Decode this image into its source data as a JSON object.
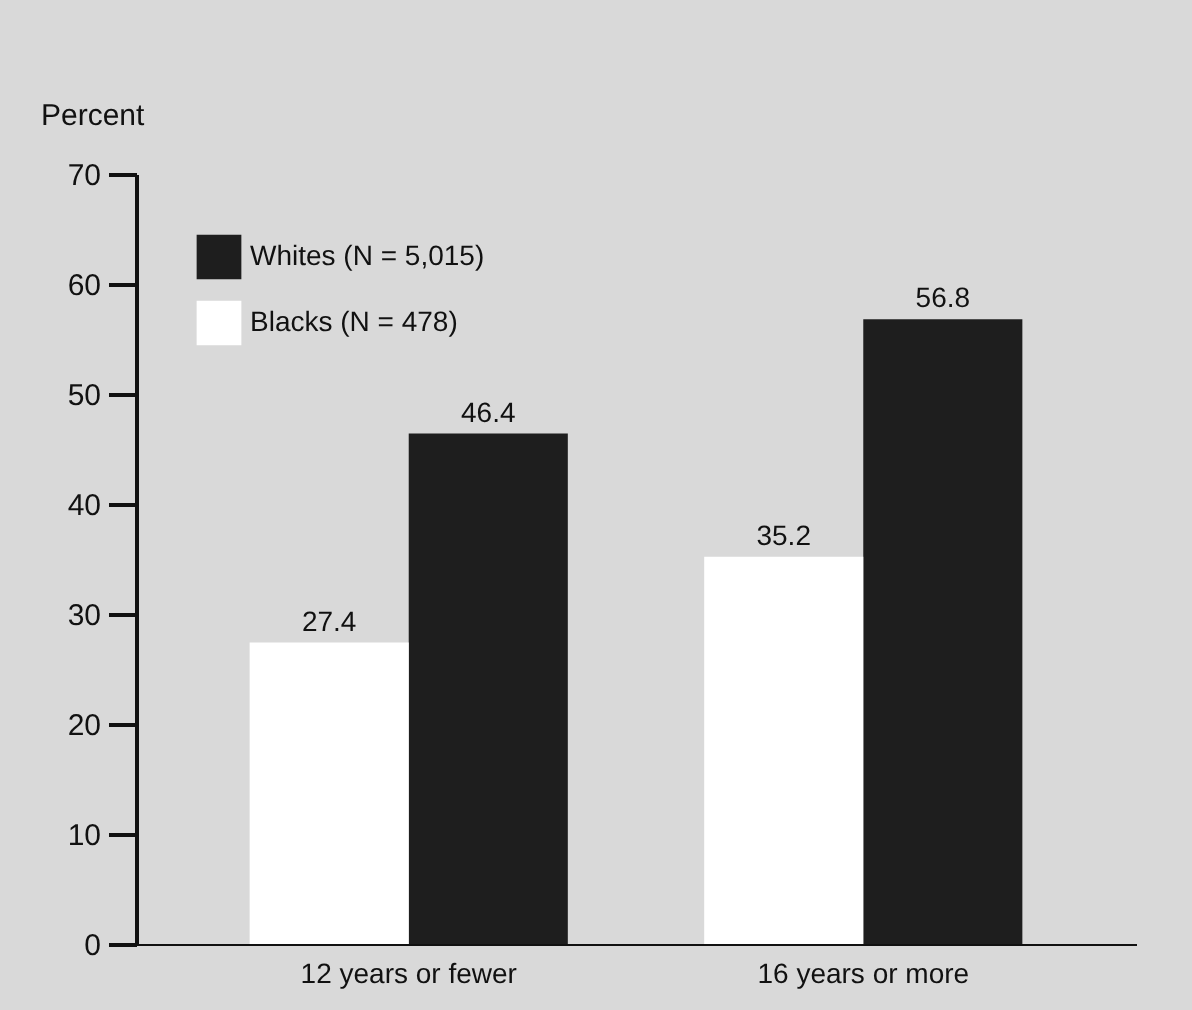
{
  "chart_data": {
    "type": "bar",
    "ylabel": "Percent",
    "categories": [
      "12 years or fewer",
      "16 years or more"
    ],
    "series": [
      {
        "name": "Whites (N = 5,015)",
        "color": "#1e1e1e",
        "values": [
          46.4,
          56.8
        ]
      },
      {
        "name": "Blacks (N = 478)",
        "color": "#ffffff",
        "values": [
          27.4,
          35.2
        ]
      }
    ],
    "ylim": [
      0,
      70
    ],
    "yticks": [
      0,
      10,
      20,
      30,
      40,
      50,
      60,
      70
    ],
    "legend": "top left",
    "data_labels": true
  }
}
